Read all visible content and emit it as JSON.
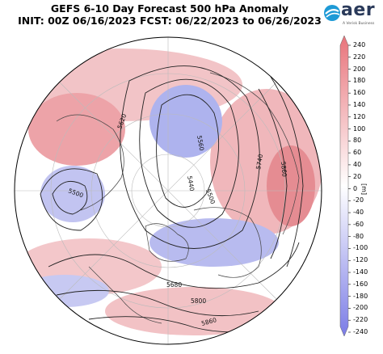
{
  "header": {
    "title_line1": "GEFS 6-10 Day Forecast 500 hPa Anomaly",
    "title_line2": "INIT: 00Z 06/16/2023    FCST: 06/22/2023 to 06/26/2023"
  },
  "logo": {
    "icon": "aer-globe-icon",
    "wordmark": "aer",
    "tagline": "A Verisk Business",
    "color": "#2a3a5a"
  },
  "colorbar": {
    "unit": "[m]",
    "ticks": [
      "240",
      "220",
      "200",
      "180",
      "160",
      "140",
      "120",
      "100",
      "80",
      "60",
      "40",
      "20",
      "0",
      "-20",
      "-40",
      "-60",
      "-80",
      "-100",
      "-120",
      "-140",
      "-160",
      "-180",
      "-200",
      "-220",
      "-240"
    ],
    "color_high": "#e8737a",
    "color_mid": "#ffffff",
    "color_low": "#7b7ce6"
  },
  "map": {
    "projection": "north-polar-stereographic",
    "contour_labels": [
      "5620",
      "5560",
      "5500",
      "5440",
      "5500",
      "5740",
      "5860",
      "5680",
      "5800",
      "5860"
    ]
  }
}
